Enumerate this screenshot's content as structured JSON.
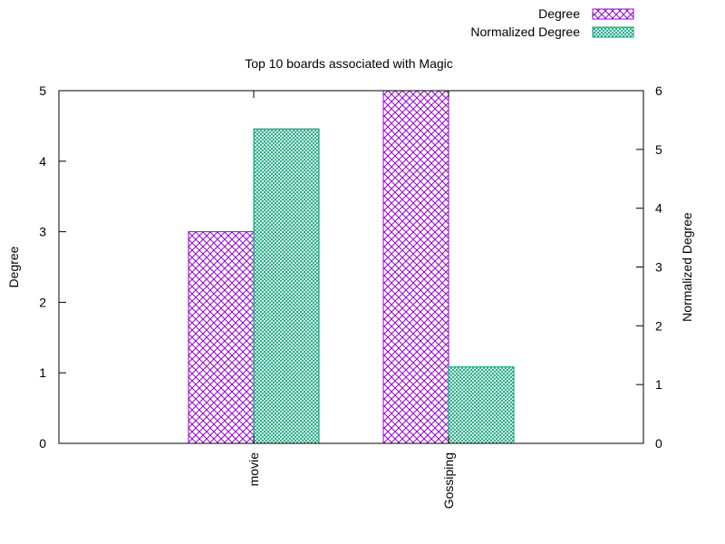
{
  "chart_data": {
    "type": "bar",
    "title": "Top 10 boards associated with Magic",
    "xlabel": "",
    "ylabel": "Degree",
    "y2label": "Normalized Degree",
    "categories": [
      "movie",
      "Gossiping"
    ],
    "ylim": [
      0,
      5
    ],
    "y2lim": [
      0,
      6
    ],
    "yticks": [
      "0",
      "1",
      "2",
      "3",
      "4",
      "5"
    ],
    "y2ticks": [
      "0",
      "1",
      "2",
      "3",
      "4",
      "5",
      "6"
    ],
    "legend_position": "top-right",
    "grid": false,
    "series": [
      {
        "name": "Degree",
        "axis": "left",
        "color": "#9400d3",
        "pattern": "crosshatch",
        "values": [
          3,
          5
        ]
      },
      {
        "name": "Normalized Degree",
        "axis": "right",
        "color": "#009e73",
        "pattern": "fine-crosshatch",
        "values": [
          5.35,
          1.3
        ]
      }
    ]
  }
}
